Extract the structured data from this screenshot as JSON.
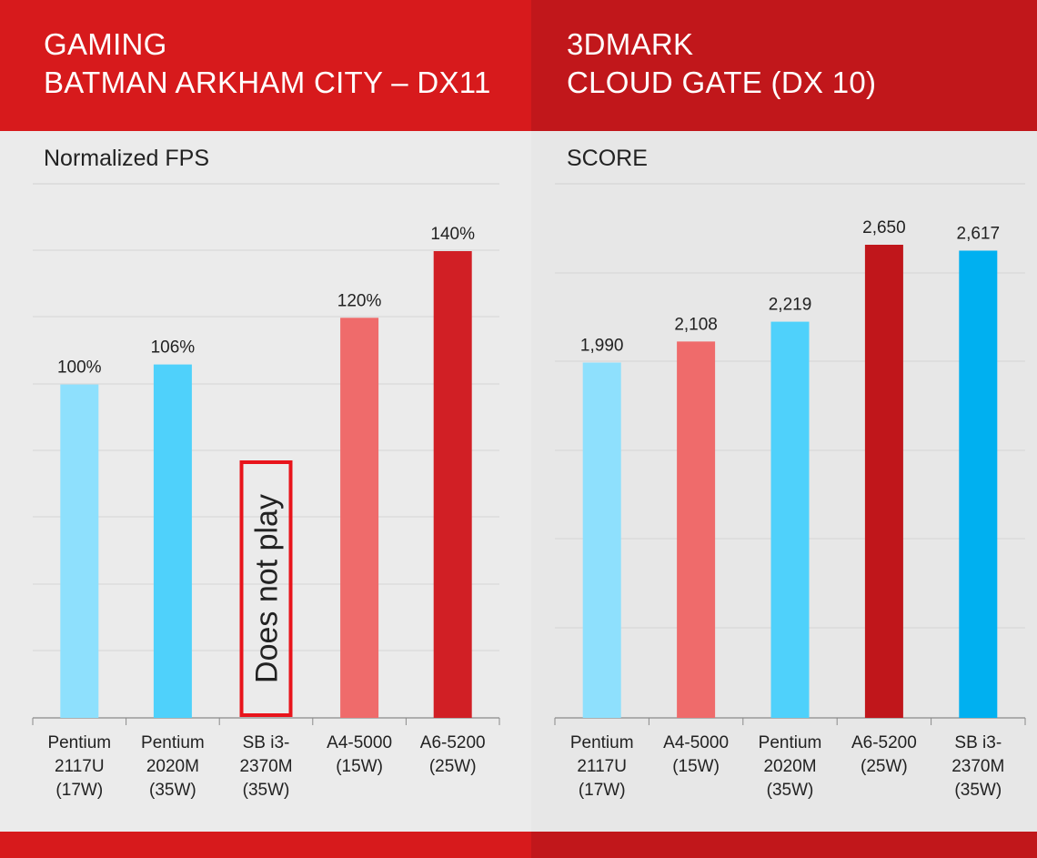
{
  "colors": {
    "light_blue": "#8ee0fd",
    "blue": "#4fd1fb",
    "deep_blue": "#00b0f0",
    "salmon": "#ef6b6b",
    "red": "#d11f25",
    "dark_red": "#c0161b"
  },
  "left": {
    "header": {
      "line1": "GAMING",
      "line2": "BATMAN ARKHAM CITY – DX11"
    },
    "subtitle": "Normalized FPS",
    "note": "Does not play"
  },
  "right": {
    "header": {
      "line1": "3DMARK",
      "line2": "CLOUD GATE (DX 10)"
    },
    "subtitle": "SCORE"
  },
  "chart_data": [
    {
      "type": "bar",
      "title": "GAMING BATMAN ARKHAM CITY – DX11",
      "ylabel": "Normalized FPS",
      "ylim": [
        0,
        140
      ],
      "grid": true,
      "categories": [
        [
          "Pentium",
          "2117U",
          "(17W)"
        ],
        [
          "Pentium",
          "2020M",
          "(35W)"
        ],
        [
          "SB i3-",
          "2370M",
          "(35W)"
        ],
        [
          "A4-5000",
          "(15W)"
        ],
        [
          "A6-5200",
          "(25W)"
        ]
      ],
      "values": [
        100,
        106,
        null,
        120,
        140
      ],
      "labels": [
        "100%",
        "106%",
        "",
        "120%",
        "140%"
      ],
      "bar_colors": [
        "light_blue",
        "blue",
        "",
        "salmon",
        "red"
      ]
    },
    {
      "type": "bar",
      "title": "3DMARK CLOUD GATE (DX 10)",
      "ylabel": "SCORE",
      "ylim": [
        0,
        2650
      ],
      "grid": true,
      "categories": [
        [
          "Pentium",
          "2117U",
          "(17W)"
        ],
        [
          "A4-5000",
          "(15W)"
        ],
        [
          "Pentium",
          "2020M",
          "(35W)"
        ],
        [
          "A6-5200",
          "(25W)"
        ],
        [
          "SB i3-",
          "2370M",
          "(35W)"
        ]
      ],
      "values": [
        1990,
        2108,
        2219,
        2650,
        2617
      ],
      "labels": [
        "1,990",
        "2,108",
        "2,219",
        "2,650",
        "2,617"
      ],
      "bar_colors": [
        "light_blue",
        "salmon",
        "blue",
        "dark_red",
        "deep_blue"
      ]
    }
  ]
}
